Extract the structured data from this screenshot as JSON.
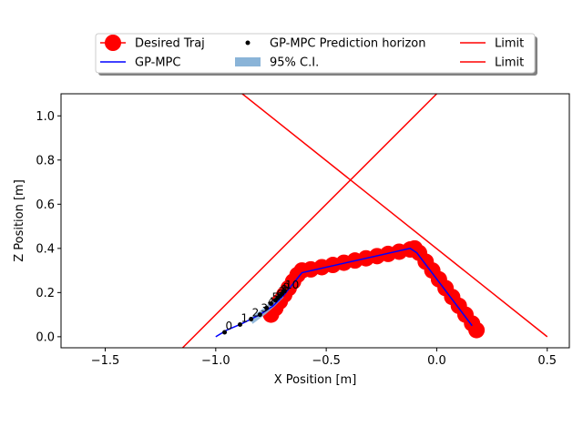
{
  "chart_data": {
    "type": "line",
    "xlabel": "X Position [m]",
    "ylabel": "Z Position [m]",
    "xlim": [
      -1.7,
      0.6
    ],
    "ylim": [
      -0.05,
      1.1
    ],
    "x_ticks": [
      -1.5,
      -1.0,
      -0.5,
      0.0,
      0.5
    ],
    "x_tick_labels": [
      "−1.5",
      "−1.0",
      "−0.5",
      "0.0",
      "0.5"
    ],
    "y_ticks": [
      0.0,
      0.2,
      0.4,
      0.6,
      0.8,
      1.0
    ],
    "y_tick_labels": [
      "0.0",
      "0.2",
      "0.4",
      "0.6",
      "0.8",
      "1.0"
    ],
    "grid": false,
    "legend_placement": "top-center, above plot, 3 columns",
    "series": [
      {
        "name": "Desired Traj",
        "color": "#ff0000",
        "style": "line with large circle markers",
        "points": [
          [
            -0.75,
            0.1
          ],
          [
            -0.73,
            0.13
          ],
          [
            -0.71,
            0.16
          ],
          [
            -0.69,
            0.19
          ],
          [
            -0.67,
            0.22
          ],
          [
            -0.65,
            0.25
          ],
          [
            -0.63,
            0.28
          ],
          [
            -0.61,
            0.3
          ],
          [
            -0.57,
            0.305
          ],
          [
            -0.52,
            0.315
          ],
          [
            -0.47,
            0.325
          ],
          [
            -0.42,
            0.335
          ],
          [
            -0.37,
            0.345
          ],
          [
            -0.32,
            0.355
          ],
          [
            -0.27,
            0.365
          ],
          [
            -0.22,
            0.375
          ],
          [
            -0.17,
            0.385
          ],
          [
            -0.12,
            0.395
          ],
          [
            -0.1,
            0.4
          ],
          [
            -0.08,
            0.38
          ],
          [
            -0.05,
            0.34
          ],
          [
            -0.02,
            0.3
          ],
          [
            0.01,
            0.26
          ],
          [
            0.04,
            0.22
          ],
          [
            0.07,
            0.18
          ],
          [
            0.1,
            0.14
          ],
          [
            0.13,
            0.1
          ],
          [
            0.16,
            0.06
          ],
          [
            0.18,
            0.03
          ]
        ]
      },
      {
        "name": "GP-MPC",
        "color": "#0000ff",
        "style": "line",
        "points": [
          [
            -1.0,
            0.0
          ],
          [
            -0.95,
            0.03
          ],
          [
            -0.88,
            0.06
          ],
          [
            -0.8,
            0.1
          ],
          [
            -0.74,
            0.14
          ],
          [
            -0.69,
            0.19
          ],
          [
            -0.65,
            0.24
          ],
          [
            -0.61,
            0.29
          ],
          [
            -0.12,
            0.4
          ],
          [
            -0.09,
            0.38
          ],
          [
            0.16,
            0.05
          ]
        ]
      },
      {
        "name": "GP-MPC Prediction horizon",
        "color": "#000000",
        "style": "small black dots",
        "points": [
          [
            -0.96,
            0.02
          ],
          [
            -0.89,
            0.055
          ],
          [
            -0.84,
            0.08
          ],
          [
            -0.8,
            0.1
          ],
          [
            -0.77,
            0.13
          ],
          [
            -0.75,
            0.15
          ],
          [
            -0.73,
            0.165
          ],
          [
            -0.72,
            0.175
          ],
          [
            -0.71,
            0.185
          ],
          [
            -0.7,
            0.195
          ],
          [
            -0.69,
            0.205
          ]
        ],
        "point_labels": [
          "0",
          "1",
          "2",
          "3",
          "4",
          "5",
          "6",
          "7",
          "8",
          "9",
          "10"
        ]
      },
      {
        "name": "95% C.I.",
        "color": "#8ab4d8",
        "style": "shaded band",
        "points": [
          [
            -0.84,
            0.07
          ],
          [
            -0.78,
            0.115
          ],
          [
            -0.74,
            0.15
          ],
          [
            -0.7,
            0.19
          ]
        ],
        "halfwidth": 0.012
      },
      {
        "name": "Limit",
        "color": "#ff0000",
        "style": "line",
        "points": [
          [
            -1.15,
            -0.05
          ],
          [
            0.0,
            1.1
          ]
        ]
      },
      {
        "name": "Limit",
        "color": "#ff0000",
        "style": "line",
        "points": [
          [
            -0.88,
            1.1
          ],
          [
            0.5,
            0.0
          ]
        ]
      }
    ]
  }
}
